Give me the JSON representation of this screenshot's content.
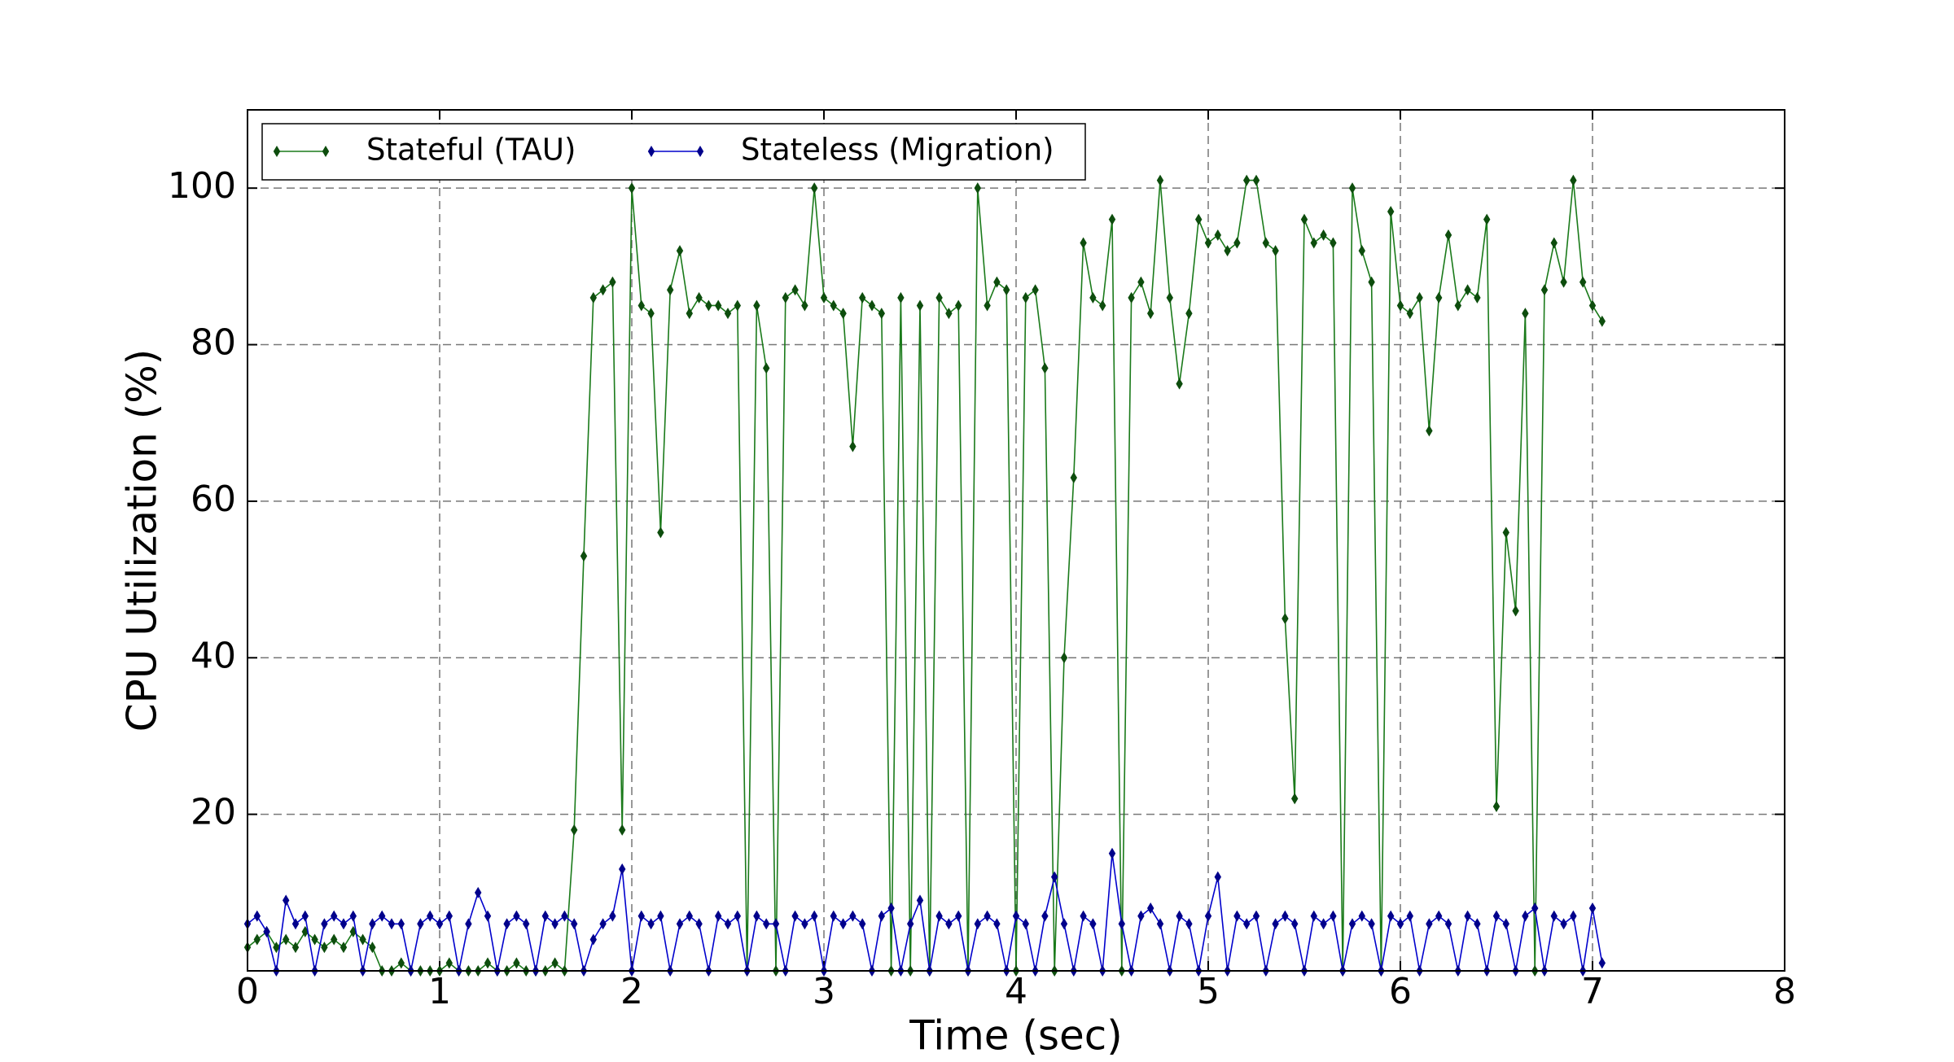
{
  "chart_data": {
    "type": "line",
    "x_label": "Time (sec)",
    "y_label": "CPU Utilization (%)",
    "xlim": [
      0,
      8
    ],
    "ylim": [
      0,
      110
    ],
    "xticks": [
      0,
      1,
      2,
      3,
      4,
      5,
      6,
      7,
      8
    ],
    "yticks": [
      20,
      40,
      60,
      80,
      100
    ],
    "grid": true,
    "legend": "upper left",
    "x": [
      0,
      0.05,
      0.1,
      0.15,
      0.2,
      0.25,
      0.3,
      0.35,
      0.4,
      0.45,
      0.5,
      0.55,
      0.6,
      0.65,
      0.7,
      0.75,
      0.8,
      0.85,
      0.9,
      0.95,
      1,
      1.05,
      1.1,
      1.15,
      1.2,
      1.25,
      1.3,
      1.35,
      1.4,
      1.45,
      1.5,
      1.55,
      1.6,
      1.65,
      1.7,
      1.75,
      1.8,
      1.85,
      1.9,
      1.95,
      2,
      2.05,
      2.1,
      2.15,
      2.2,
      2.25,
      2.3,
      2.35,
      2.4,
      2.45,
      2.5,
      2.55,
      2.6,
      2.65,
      2.7,
      2.75,
      2.8,
      2.85,
      2.9,
      2.95,
      3,
      3.05,
      3.1,
      3.15,
      3.2,
      3.25,
      3.3,
      3.35,
      3.4,
      3.45,
      3.5,
      3.55,
      3.6,
      3.65,
      3.7,
      3.75,
      3.8,
      3.85,
      3.9,
      3.95,
      4,
      4.05,
      4.1,
      4.15,
      4.2,
      4.25,
      4.3,
      4.35,
      4.4,
      4.45,
      4.5,
      4.55,
      4.6,
      4.65,
      4.7,
      4.75,
      4.8,
      4.85,
      4.9,
      4.95,
      5,
      5.05,
      5.1,
      5.15,
      5.2,
      5.25,
      5.3,
      5.35,
      5.4,
      5.45,
      5.5,
      5.55,
      5.6,
      5.65,
      5.7,
      5.75,
      5.8,
      5.85,
      5.9,
      5.95,
      6,
      6.05,
      6.1,
      6.15,
      6.2,
      6.25,
      6.3,
      6.35,
      6.4,
      6.45,
      6.5,
      6.55,
      6.6,
      6.65,
      6.7,
      6.75,
      6.8,
      6.85,
      6.9,
      6.95,
      7,
      7.05
    ],
    "series": [
      {
        "name": "Stateful (TAU)",
        "color": "#1a7a1a",
        "marker_color": "#0d4d0d",
        "values": [
          3,
          4,
          5,
          3,
          4,
          3,
          5,
          4,
          3,
          4,
          3,
          5,
          4,
          3,
          0,
          0,
          1,
          0,
          0,
          0,
          0,
          1,
          0,
          0,
          0,
          1,
          0,
          0,
          1,
          0,
          0,
          0,
          1,
          0,
          18,
          53,
          86,
          87,
          88,
          18,
          100,
          85,
          84,
          56,
          87,
          92,
          84,
          86,
          85,
          85,
          84,
          85,
          0,
          85,
          77,
          0,
          86,
          87,
          85,
          100,
          86,
          85,
          84,
          67,
          86,
          85,
          84,
          0,
          86,
          0,
          85,
          0,
          86,
          84,
          85,
          0,
          100,
          85,
          88,
          87,
          0,
          86,
          87,
          77,
          0,
          40,
          63,
          93,
          86,
          85,
          96,
          0,
          86,
          88,
          84,
          101,
          86,
          75,
          84,
          96,
          93,
          94,
          92,
          93,
          101,
          101,
          93,
          92,
          45,
          22,
          96,
          93,
          94,
          93,
          0,
          100,
          92,
          88,
          0,
          97,
          85,
          84,
          86,
          69,
          86,
          94,
          85,
          87,
          86,
          96,
          21,
          56,
          46,
          84,
          0,
          87,
          93,
          88,
          101,
          88,
          85,
          83
        ]
      },
      {
        "name": "Stateless (Migration)",
        "color": "#0000cc",
        "marker_color": "#00008b",
        "values": [
          6,
          7,
          5,
          0,
          9,
          6,
          7,
          0,
          6,
          7,
          6,
          7,
          0,
          6,
          7,
          6,
          6,
          0,
          6,
          7,
          6,
          7,
          0,
          6,
          10,
          7,
          0,
          6,
          7,
          6,
          0,
          7,
          6,
          7,
          6,
          0,
          4,
          6,
          7,
          13,
          0,
          7,
          6,
          7,
          0,
          6,
          7,
          6,
          0,
          7,
          6,
          7,
          0,
          7,
          6,
          6,
          0,
          7,
          6,
          7,
          0,
          7,
          6,
          7,
          6,
          0,
          7,
          8,
          0,
          6,
          9,
          0,
          7,
          6,
          7,
          0,
          6,
          7,
          6,
          0,
          7,
          6,
          0,
          7,
          12,
          6,
          0,
          7,
          6,
          0,
          15,
          6,
          0,
          7,
          8,
          6,
          0,
          7,
          6,
          0,
          7,
          12,
          0,
          7,
          6,
          7,
          0,
          6,
          7,
          6,
          0,
          7,
          6,
          7,
          0,
          6,
          7,
          6,
          0,
          7,
          6,
          7,
          0,
          6,
          7,
          6,
          0,
          7,
          6,
          0,
          7,
          6,
          0,
          7,
          8,
          0,
          7,
          6,
          7,
          0,
          8,
          1
        ]
      }
    ]
  }
}
